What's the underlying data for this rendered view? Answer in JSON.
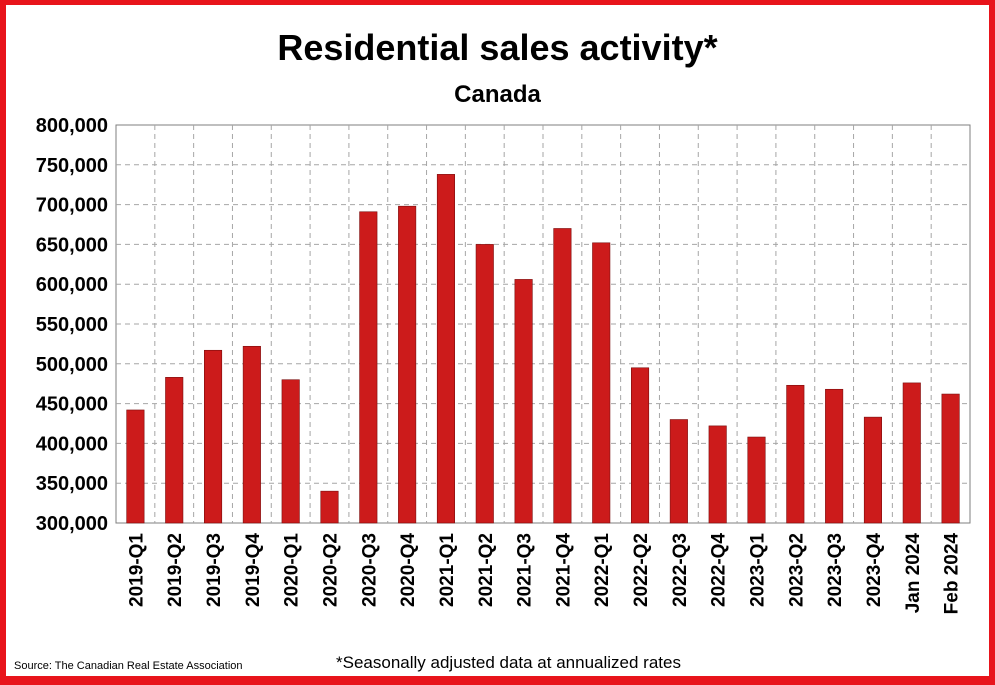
{
  "colors": {
    "frame": "#e8141b",
    "bar": "#cc1b1b",
    "grid": "#a6a6a6"
  },
  "footer": {
    "source": "Source: The Canadian Real Estate Association",
    "note": "*Seasonally adjusted data at annualized rates"
  },
  "chart_data": {
    "type": "bar",
    "title": "Residential sales activity*",
    "subtitle": "Canada",
    "xlabel": "",
    "ylabel": "",
    "ylim": [
      300000,
      800000
    ],
    "yticks": [
      300000,
      350000,
      400000,
      450000,
      500000,
      550000,
      600000,
      650000,
      700000,
      750000,
      800000
    ],
    "ytick_labels": [
      "300,000",
      "350,000",
      "400,000",
      "450,000",
      "500,000",
      "550,000",
      "600,000",
      "650,000",
      "700,000",
      "750,000",
      "800,000"
    ],
    "grid": true,
    "legend": "none",
    "categories": [
      "2019-Q1",
      "2019-Q2",
      "2019-Q3",
      "2019-Q4",
      "2020-Q1",
      "2020-Q2",
      "2020-Q3",
      "2020-Q4",
      "2021-Q1",
      "2021-Q2",
      "2021-Q3",
      "2021-Q4",
      "2022-Q1",
      "2022-Q2",
      "2022-Q3",
      "2022-Q4",
      "2023-Q1",
      "2023-Q2",
      "2023-Q3",
      "2023-Q4",
      "Jan 2024",
      "Feb 2024"
    ],
    "values": [
      442000,
      483000,
      517000,
      522000,
      480000,
      340000,
      691000,
      698000,
      738000,
      650000,
      606000,
      670000,
      652000,
      495000,
      430000,
      422000,
      408000,
      473000,
      468000,
      433000,
      476000,
      462000
    ]
  }
}
